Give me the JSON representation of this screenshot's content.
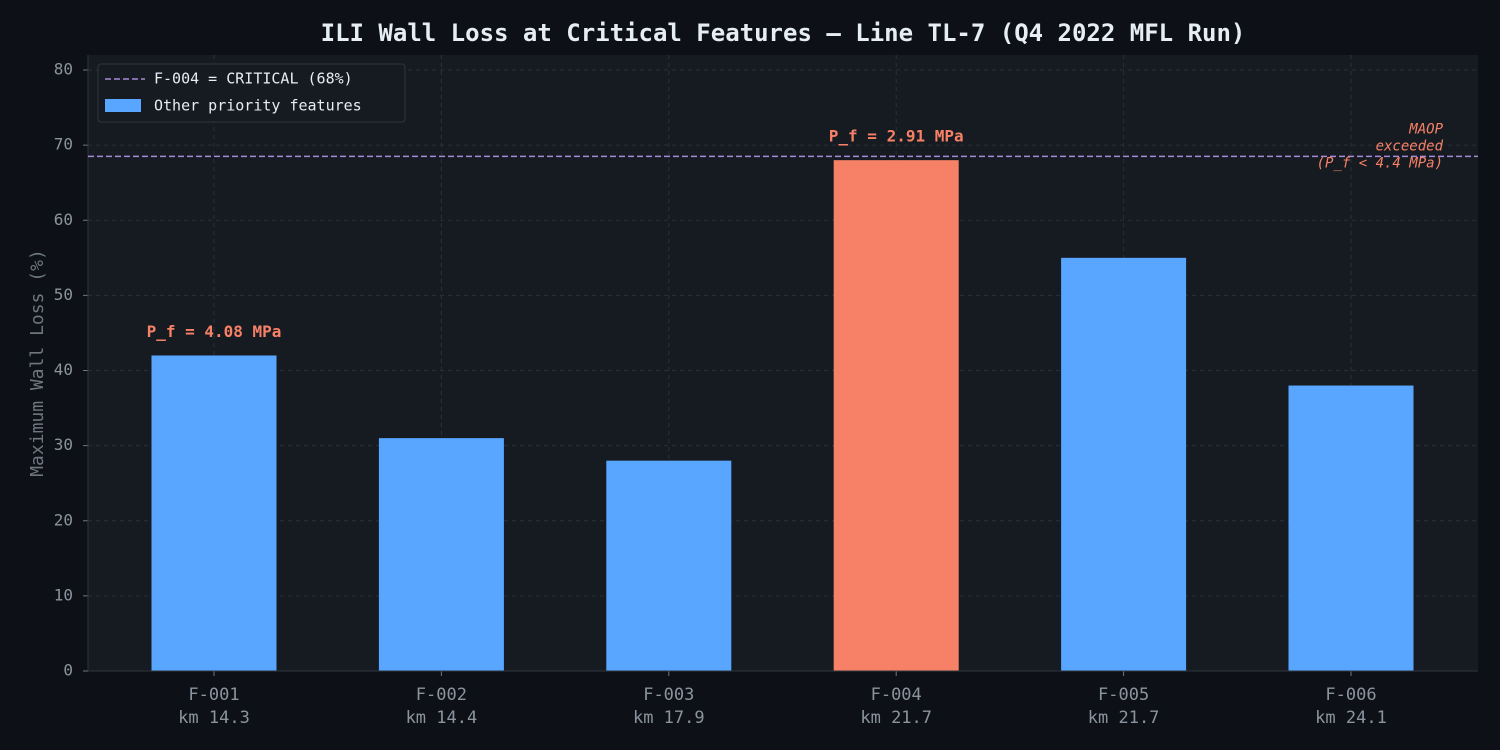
{
  "chart_data": {
    "type": "bar",
    "title": "ILI Wall Loss at Critical Features — Line TL-7 (Q4 2022 MFL Run)",
    "y_label": "Maximum Wall Loss (%)",
    "categories": [
      "F-001",
      "F-002",
      "F-003",
      "F-004",
      "F-005",
      "F-006"
    ],
    "locations": [
      "km 14.3",
      "km 14.4",
      "km 17.9",
      "km 21.7",
      "km 21.7",
      "km 24.1"
    ],
    "values": [
      42,
      31,
      28,
      68,
      55,
      38
    ],
    "colors": [
      "#58a6ff",
      "#58a6ff",
      "#58a6ff",
      "#f78166",
      "#58a6ff",
      "#58a6ff"
    ],
    "bar_labels": [
      "P_f = 4.08 MPa",
      null,
      null,
      "P_f = 2.91 MPa",
      null,
      null
    ],
    "threshold": {
      "value": 68.5,
      "color": "#a58bd6",
      "name": "F-004 = CRITICAL (68%)"
    },
    "threshold_note": [
      "MAOP",
      "exceeded",
      "(P_f < 4.4 MPa)"
    ],
    "legend_patch": {
      "name": "Other priority features",
      "color": "#58a6ff"
    },
    "legend": "upper left",
    "ylim": [
      0,
      82
    ],
    "yticks": [
      0,
      10,
      20,
      30,
      40,
      50,
      60,
      70,
      80
    ],
    "grid": true
  }
}
